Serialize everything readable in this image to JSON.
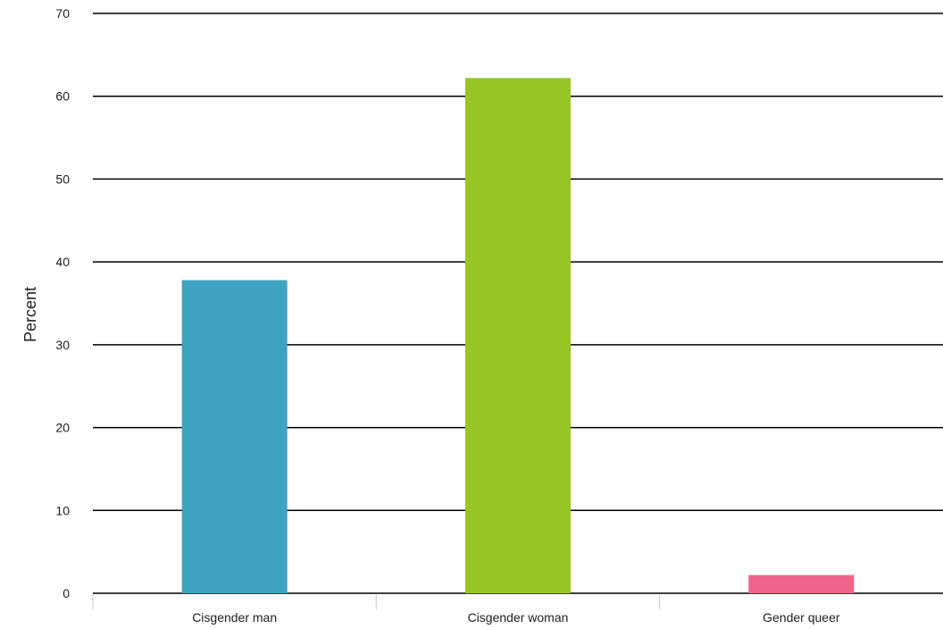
{
  "chart_data": {
    "type": "bar",
    "categories": [
      "Cisgender man",
      "Cisgender woman",
      "Gender queer"
    ],
    "values": [
      37.8,
      62.2,
      2.2
    ],
    "colors": [
      "#3ea2c0",
      "#97c626",
      "#ec6688"
    ],
    "title": "",
    "xlabel": "",
    "ylabel": "Percent",
    "ylim": [
      0,
      70
    ],
    "yticks": [
      0,
      10,
      20,
      30,
      40,
      50,
      60,
      70
    ],
    "grid": true,
    "grid_color": "#000000"
  }
}
